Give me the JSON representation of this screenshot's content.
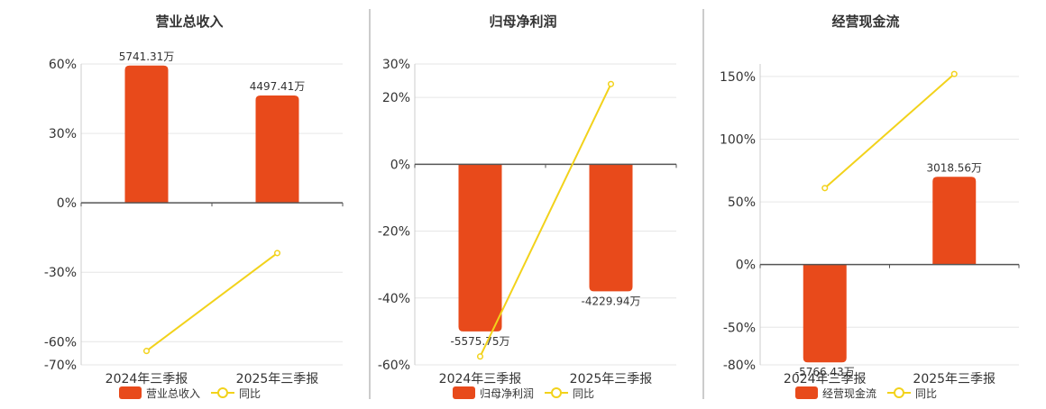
{
  "colors": {
    "bar": "#E84A1B",
    "line": "#F2D21B",
    "grid": "#E6E6E6",
    "axis": "#555555",
    "text": "#333333",
    "divider": "#999999"
  },
  "chart_data": [
    {
      "type": "bar",
      "title": "营业总收入",
      "categories": [
        "2024年三季报",
        "2025年三季报"
      ],
      "bar_values": [
        59.3,
        46.4
      ],
      "bar_labels": [
        "5741.31万",
        "4497.41万"
      ],
      "line_values": [
        -64.0,
        -21.7
      ],
      "ylim": [
        -70,
        60
      ],
      "yticks": [
        60,
        30,
        0,
        -30,
        -60,
        -70
      ],
      "ytick_labels": [
        "60%",
        "30%",
        "0%",
        "-30%",
        "-60%",
        "-70%"
      ],
      "legend": {
        "bar": "营业总收入",
        "line": "同比"
      },
      "legend_position": "bottom",
      "grid": true
    },
    {
      "type": "bar",
      "title": "归母净利润",
      "categories": [
        "2024年三季报",
        "2025年三季报"
      ],
      "bar_values": [
        -50.0,
        -38.0
      ],
      "bar_labels": [
        "-5575.75万",
        "-4229.94万"
      ],
      "line_values": [
        -57.5,
        24.0
      ],
      "ylim": [
        -60,
        30
      ],
      "yticks": [
        30,
        20,
        0,
        -20,
        -40,
        -60
      ],
      "ytick_labels": [
        "30%",
        "20%",
        "0%",
        "-20%",
        "-40%",
        "-60%"
      ],
      "legend": {
        "bar": "归母净利润",
        "line": "同比"
      },
      "legend_position": "bottom",
      "grid": true
    },
    {
      "type": "bar",
      "title": "经营现金流",
      "categories": [
        "2024年三季报",
        "2025年三季报"
      ],
      "bar_values": [
        -78.0,
        70.0
      ],
      "bar_labels": [
        "-5766.43万",
        "3018.56万"
      ],
      "line_values": [
        61.0,
        152.0
      ],
      "ylim": [
        -80,
        160
      ],
      "yticks": [
        150,
        100,
        50,
        0,
        -50,
        -80
      ],
      "ytick_labels": [
        "150%",
        "100%",
        "50%",
        "0%",
        "-50%",
        "-80%"
      ],
      "legend": {
        "bar": "经营现金流",
        "line": "同比"
      },
      "legend_position": "bottom",
      "grid": true
    }
  ]
}
